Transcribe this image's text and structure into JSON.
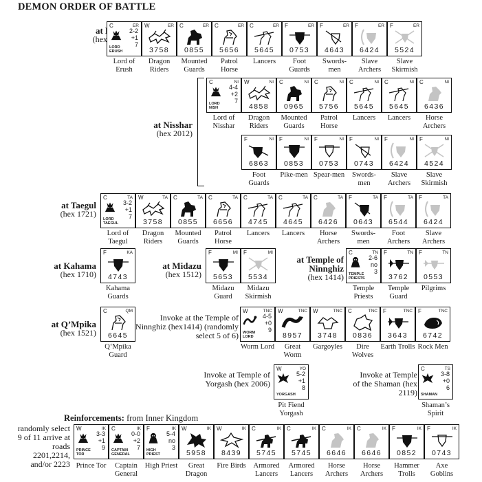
{
  "title": "DEMON ORDER OF BATTLE",
  "locations": {
    "erush": {
      "name": "at Erush",
      "hex": "(hex 1905)"
    },
    "nisshar": {
      "name": "at Nisshar",
      "hex": "(hex 2012)"
    },
    "taegul": {
      "name": "at Taegul",
      "hex": "(hex 1721)"
    },
    "kahama": {
      "name": "at Kahama",
      "hex": "(hex 1710)"
    },
    "midazu": {
      "name": "at Midazu",
      "hex": "(hex 1512)"
    },
    "ninnghiz": {
      "name": "at Temple of Ninnghiz",
      "hex": "(hex 1414)"
    },
    "qmpika": {
      "name": "at Q’Mpika",
      "hex": "(hex 1521)"
    }
  },
  "invoke": {
    "ninnghiz": "Invoke at the Temple of Ninnghiz (hex1414) (randomly select 5 of 6)",
    "yorgash": "Invoke at Temple of Yorgash (hex 2006)",
    "shaman": "Invoke at Temple of the Shaman (hex 2119)"
  },
  "reinforcements": {
    "title_bold": "Reinforcements:",
    "title_rest": " from Inner Kingdom",
    "note": "randomly select 9 of 11 arrive at roads 2201,2214, and/or 2223"
  },
  "rows": {
    "erush": [
      {
        "type": "C",
        "code": "ER",
        "leader": true,
        "lname": "LORD ERUSH",
        "s1": "2-2",
        "s2": "+1",
        "s3": "7",
        "icon": "lord",
        "label": "Lord of Erush"
      },
      {
        "type": "W",
        "code": "ER",
        "stats": "3758",
        "icon": "dragon",
        "label": "Dragon Riders"
      },
      {
        "type": "C",
        "code": "ER",
        "stats": "0855",
        "icon": "mounted",
        "label": "Mounted Guards"
      },
      {
        "type": "C",
        "code": "ER",
        "stats": "5656",
        "icon": "horse",
        "label": "Patrol Horse"
      },
      {
        "type": "C",
        "code": "ER",
        "stats": "5645",
        "icon": "lance",
        "label": "Lancers"
      },
      {
        "type": "F",
        "code": "ER",
        "stats": "0753",
        "icon": "shield",
        "label": "Foot Guards"
      },
      {
        "type": "F",
        "code": "ER",
        "stats": "4643",
        "icon": "sword",
        "label": "Swords-men"
      },
      {
        "type": "F",
        "code": "ER",
        "stats": "6424",
        "icon": "archer",
        "label": "Slave Archers"
      },
      {
        "type": "F",
        "code": "ER",
        "stats": "5524",
        "icon": "skirmish",
        "label": "Slave Skirmish"
      }
    ],
    "nisshar1": [
      {
        "type": "C",
        "code": "NI",
        "leader": true,
        "lname": "LORD NISH",
        "s1": "4-4",
        "s2": "+2",
        "s3": "7",
        "icon": "lord",
        "label": "Lord of Nisshar"
      },
      {
        "type": "W",
        "code": "NI",
        "stats": "4858",
        "icon": "dragon",
        "label": "Dragon Riders"
      },
      {
        "type": "C",
        "code": "NI",
        "stats": "0965",
        "icon": "mounted",
        "label": "Mounted Guards"
      },
      {
        "type": "C",
        "code": "NI",
        "stats": "5756",
        "icon": "horse",
        "label": "Patrol Horse"
      },
      {
        "type": "C",
        "code": "NI",
        "stats": "5645",
        "icon": "lance",
        "label": "Lancers"
      },
      {
        "type": "C",
        "code": "NI",
        "stats": "5645",
        "icon": "lance",
        "label": "Lancers"
      },
      {
        "type": "C",
        "code": "NI",
        "stats": "6436",
        "icon": "horsearcher",
        "label": "Horse Archers"
      }
    ],
    "nisshar2": [
      {
        "type": "F",
        "code": "NI",
        "stats": "6863",
        "icon": "footguard",
        "label": "Foot Guards"
      },
      {
        "type": "F",
        "code": "NI",
        "stats": "0853",
        "icon": "pike",
        "label": "Pike-men"
      },
      {
        "type": "F",
        "code": "NI",
        "stats": "0753",
        "icon": "spear",
        "label": "Spear-men"
      },
      {
        "type": "F",
        "code": "NI",
        "stats": "0743",
        "icon": "sword",
        "label": "Swords-men"
      },
      {
        "type": "F",
        "code": "NI",
        "stats": "6424",
        "icon": "archer",
        "label": "Slave Archers"
      },
      {
        "type": "F",
        "code": "NI",
        "stats": "4524",
        "icon": "skirmish",
        "label": "Slave Skirmish"
      }
    ],
    "taegul": [
      {
        "type": "C",
        "code": "TA",
        "leader": true,
        "lname": "LORD TAEGUL",
        "s1": "3-2",
        "s2": "+1",
        "s3": "7",
        "icon": "lord",
        "label": "Lord of Taegul"
      },
      {
        "type": "W",
        "code": "TA",
        "stats": "3758",
        "icon": "dragon",
        "label": "Dragon Riders"
      },
      {
        "type": "C",
        "code": "TA",
        "stats": "0855",
        "icon": "mounted",
        "label": "Mounted Guards"
      },
      {
        "type": "C",
        "code": "TA",
        "stats": "6656",
        "icon": "horse",
        "label": "Patrol Horse"
      },
      {
        "type": "C",
        "code": "TA",
        "stats": "4745",
        "icon": "lance",
        "label": "Lancers"
      },
      {
        "type": "C",
        "code": "TA",
        "stats": "4645",
        "icon": "lance",
        "label": "Lancers"
      },
      {
        "type": "C",
        "code": "TA",
        "stats": "6426",
        "icon": "horsearcher",
        "label": "Horse Archers"
      },
      {
        "type": "F",
        "code": "TA",
        "stats": "0643",
        "icon": "swordblack",
        "label": "Swords-men"
      },
      {
        "type": "F",
        "code": "TA",
        "stats": "6544",
        "icon": "archer",
        "label": "Foot Archers"
      },
      {
        "type": "F",
        "code": "TA",
        "stats": "6424",
        "icon": "archer",
        "label": "Slave Archers"
      }
    ],
    "kahama": [
      {
        "type": "F",
        "code": "KA",
        "stats": "4743",
        "icon": "shield",
        "label": "Kahama Guards"
      }
    ],
    "midazu": [
      {
        "type": "F",
        "code": "MI",
        "stats": "5653",
        "icon": "shield",
        "label": "Midazu Guard"
      },
      {
        "type": "F",
        "code": "MI",
        "stats": "5534",
        "icon": "skirmish",
        "label": "Midazu Skirmish"
      }
    ],
    "ninnghiz": [
      {
        "type": "C",
        "code": "TN",
        "leader": true,
        "lname": "TEMPLE PRIESTS",
        "s1": "2-6",
        "s2": "no",
        "s3": "3",
        "icon": "priest",
        "label": "Temple Priests"
      },
      {
        "type": "F",
        "code": "TN",
        "stats": "3762",
        "icon": "axe",
        "label": "Temple Guard"
      },
      {
        "type": "F",
        "code": "TN",
        "stats": "0553",
        "icon": "pilgrim",
        "label": "Pilgrims"
      }
    ],
    "qmpika": [
      {
        "type": "C",
        "code": "QM",
        "stats": "6645",
        "icon": "horse",
        "label": "Q‘Mpika Guard"
      }
    ],
    "ninnghiz_invoke": [
      {
        "type": "W",
        "code": "TNC",
        "leader": true,
        "lname": "WORM LORD",
        "s1": "4-5",
        "s2": "+0",
        "s3": "9",
        "icon": "worm",
        "label": "Worm Lord"
      },
      {
        "type": "W",
        "code": "TNC",
        "stats": "8957",
        "icon": "greatworm",
        "label": "Great Worm"
      },
      {
        "type": "W",
        "code": "TNC",
        "stats": "3748",
        "icon": "gargoyle",
        "label": "Gargoyles"
      },
      {
        "type": "C",
        "code": "TNC",
        "stats": "0836",
        "icon": "wolf",
        "label": "Dire Wolves"
      },
      {
        "type": "F",
        "code": "TNC",
        "stats": "3643",
        "icon": "axe",
        "label": "Earth Trolls"
      },
      {
        "type": "F",
        "code": "TNC",
        "stats": "6742",
        "icon": "rock",
        "label": "Rock Men"
      }
    ],
    "yorgash": [
      {
        "type": "W",
        "code": "YO",
        "leader": true,
        "lname": "YORGASH",
        "s1": "5-2",
        "s2": "+1",
        "s3": "8",
        "icon": "fiend",
        "label": "Pit Fiend Yorgash"
      }
    ],
    "shaman": [
      {
        "type": "C",
        "code": "TS",
        "leader": true,
        "lname": "SHAMAN",
        "s1": "3-8",
        "s2": "+0",
        "s3": "6",
        "icon": "fiend",
        "label": "Shaman’s Spirit"
      }
    ],
    "reinf": [
      {
        "type": "W",
        "code": "IK",
        "leader": true,
        "lname": "PRINCE TOR",
        "s1": "3-3",
        "s2": "+1",
        "s3": "9",
        "icon": "lord",
        "label": "Prince Tor"
      },
      {
        "type": "C",
        "code": "IK",
        "leader": true,
        "lname": "CAPTAIN GENERAL",
        "s1": "0-0",
        "s2": "+2",
        "s3": "7",
        "icon": "lord",
        "label": "Captain General"
      },
      {
        "type": "F",
        "code": "IK",
        "leader": true,
        "lname": "HIGH PRIEST",
        "s1": "5-4",
        "s2": "no",
        "s3": "3",
        "icon": "priest",
        "label": "High Priest"
      },
      {
        "type": "W",
        "code": "IK",
        "stats": "5958",
        "icon": "greatdragon",
        "label": "Great Dragon"
      },
      {
        "type": "W",
        "code": "IK",
        "stats": "8439",
        "icon": "firebird",
        "label": "Fire Birds"
      },
      {
        "type": "C",
        "code": "IK",
        "stats": "5745",
        "icon": "armored",
        "label": "Armored Lancers"
      },
      {
        "type": "C",
        "code": "IK",
        "stats": "5745",
        "icon": "armored",
        "label": "Armored Lancers"
      },
      {
        "type": "C",
        "code": "IK",
        "stats": "6646",
        "icon": "horsearcher",
        "label": "Horse Archers"
      },
      {
        "type": "C",
        "code": "IK",
        "stats": "6646",
        "icon": "horsearcher",
        "label": "Horse Archers"
      },
      {
        "type": "F",
        "code": "IK",
        "stats": "0852",
        "icon": "shield",
        "label": "Hammer Trolls"
      },
      {
        "type": "F",
        "code": "IK",
        "stats": "0743",
        "icon": "spear",
        "label": "Axe Goblins"
      }
    ]
  }
}
